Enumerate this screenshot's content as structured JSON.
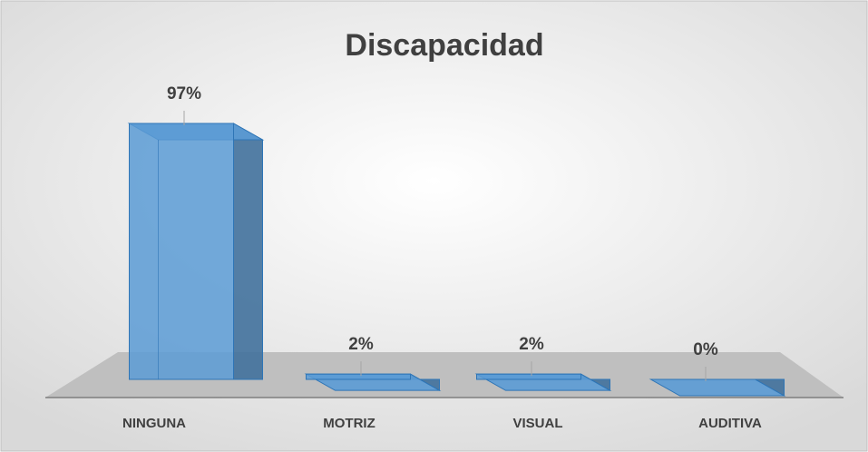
{
  "chart_data": {
    "type": "bar3d",
    "title": "Discapacidad",
    "categories": [
      "NINGUNA",
      "MOTRIZ",
      "VISUAL",
      "AUDITIVA"
    ],
    "values": [
      97,
      2,
      2,
      0
    ],
    "value_labels": [
      "97%",
      "2%",
      "2%",
      "0%"
    ],
    "color": "#5b9bd5"
  }
}
